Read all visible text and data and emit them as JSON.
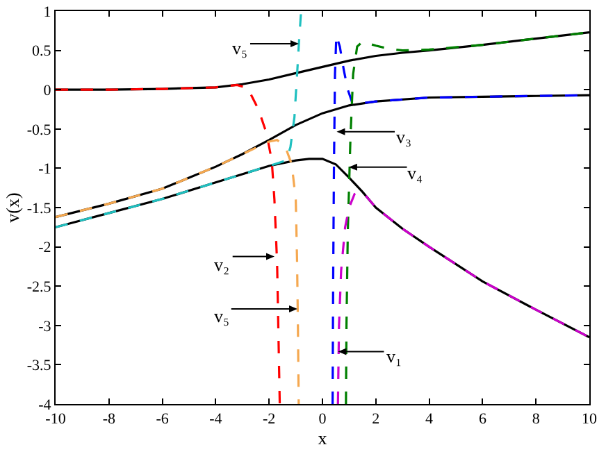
{
  "chart_data": {
    "type": "line",
    "xlabel": "x",
    "ylabel": "v(x)",
    "xlim": [
      -10,
      10
    ],
    "ylim": [
      -4,
      1
    ],
    "xticks": [
      -10,
      -8,
      -6,
      -4,
      -2,
      0,
      2,
      4,
      6,
      8,
      10
    ],
    "yticks": [
      -4,
      -3.5,
      -3,
      -2.5,
      -2,
      -1.5,
      -1,
      -0.5,
      0,
      0.5,
      1
    ],
    "series": [
      {
        "color": "#000000",
        "line_style": "solid",
        "x": [
          -10,
          -8,
          -6,
          -4,
          -3,
          -2,
          -1,
          0,
          1,
          2,
          3,
          4,
          6,
          8,
          10
        ],
        "values": [
          0,
          0,
          0.01,
          0.03,
          0.07,
          0.13,
          0.21,
          0.29,
          0.37,
          0.43,
          0.47,
          0.5,
          0.57,
          0.65,
          0.73
        ]
      },
      {
        "color": "#000000",
        "line_style": "solid",
        "x": [
          -10,
          -8,
          -6,
          -4,
          -3,
          -2,
          -1,
          0,
          1,
          2,
          4,
          6,
          8,
          10
        ],
        "values": [
          -1.62,
          -1.45,
          -1.26,
          -0.98,
          -0.82,
          -0.64,
          -0.45,
          -0.3,
          -0.2,
          -0.15,
          -0.1,
          -0.09,
          -0.08,
          -0.07
        ]
      },
      {
        "color": "#000000",
        "line_style": "solid",
        "x": [
          -10,
          -8,
          -6,
          -4,
          -2,
          -1,
          -0.5,
          0,
          0.5,
          1,
          1.5,
          2,
          3,
          4,
          6,
          8,
          10
        ],
        "values": [
          -1.75,
          -1.57,
          -1.39,
          -1.18,
          -0.97,
          -0.9,
          -0.88,
          -0.88,
          -0.95,
          -1.12,
          -1.3,
          -1.5,
          -1.77,
          -2,
          -2.44,
          -2.8,
          -3.15
        ]
      },
      {
        "color": "#ff0000",
        "line_style": "dashed",
        "x": [
          -10,
          -8,
          -6,
          -4,
          -3.2,
          -2.8,
          -2.4,
          -2.1,
          -1.9,
          -1.8,
          -1.7,
          -1.6
        ],
        "values": [
          0,
          0,
          0.01,
          0.03,
          0.06,
          0.02,
          -0.25,
          -0.55,
          -0.9,
          -1.4,
          -2.2,
          -4
        ]
      },
      {
        "color": "#f5a850",
        "line_style": "dashed",
        "x": [
          -10,
          -8,
          -6,
          -4,
          -3,
          -2,
          -1.7,
          -1.4,
          -1.15,
          -1,
          -0.95,
          -0.92,
          -0.89
        ],
        "values": [
          -1.62,
          -1.45,
          -1.26,
          -0.98,
          -0.82,
          -0.66,
          -0.64,
          -0.72,
          -0.95,
          -1.4,
          -2.2,
          -3,
          -4
        ]
      },
      {
        "color": "#20c0c0",
        "line_style": "dashed",
        "x": [
          -10,
          -8,
          -6,
          -4,
          -2,
          -1.35,
          -1.2,
          -1.05,
          -0.95,
          -0.88,
          -0.8
        ],
        "values": [
          -1.75,
          -1.57,
          -1.39,
          -1.18,
          -0.97,
          -0.9,
          -0.73,
          -0.35,
          0.2,
          0.6,
          1
        ]
      },
      {
        "color": "#0000ff",
        "line_style": "dashed",
        "x": [
          0.38,
          0.4,
          0.43,
          0.47,
          0.52,
          0.65,
          0.8,
          0.95,
          1.1,
          1.5,
          2,
          4,
          6,
          8,
          10
        ],
        "values": [
          -4,
          -2.5,
          -1,
          0.2,
          0.69,
          0.55,
          0.25,
          0,
          -0.15,
          -0.17,
          -0.15,
          -0.1,
          -0.09,
          -0.08,
          -0.07
        ]
      },
      {
        "color": "#008000",
        "line_style": "dashed",
        "x": [
          0.88,
          0.9,
          0.95,
          1.05,
          1.15,
          1.3,
          1.5,
          2,
          2.5,
          3,
          4,
          6,
          8,
          10
        ],
        "values": [
          -4,
          -3,
          -1.8,
          -0.6,
          0.2,
          0.55,
          0.61,
          0.56,
          0.52,
          0.5,
          0.51,
          0.57,
          0.65,
          0.73
        ]
      },
      {
        "color": "#cc00cc",
        "line_style": "dashed",
        "x": [
          0.58,
          0.62,
          0.7,
          0.85,
          1,
          1.2,
          1.5,
          2,
          3,
          4,
          6,
          8,
          10
        ],
        "values": [
          -4,
          -3,
          -2.3,
          -1.75,
          -1.5,
          -1.33,
          -1.3,
          -1.5,
          -1.77,
          -2,
          -2.44,
          -2.8,
          -3.15
        ]
      }
    ],
    "annotations": [
      "v₅",
      "v₃",
      "v₄",
      "v₂",
      "v₅",
      "v₁"
    ]
  }
}
